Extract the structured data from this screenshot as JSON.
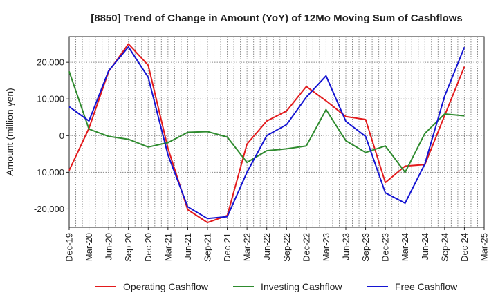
{
  "chart_data": {
    "type": "line",
    "title": "[8850]  Trend of Change in Amount (YoY) of 12Mo Moving Sum of Cashflows",
    "xlabel": "",
    "ylabel": "Amount (million yen)",
    "ylim": [
      -25000,
      27000
    ],
    "yticks": [
      -20000,
      -10000,
      0,
      10000,
      20000
    ],
    "ytick_labels": [
      "-20,000",
      "-10,000",
      "0",
      "10,000",
      "20,000"
    ],
    "categories": [
      "Dec-19",
      "Mar-20",
      "Jun-20",
      "Sep-20",
      "Dec-20",
      "Mar-21",
      "Jun-21",
      "Sep-21",
      "Dec-21",
      "Mar-22",
      "Jun-22",
      "Sep-22",
      "Dec-22",
      "Mar-23",
      "Jun-23",
      "Sep-23",
      "Dec-23",
      "Mar-24",
      "Jun-24",
      "Sep-24",
      "Dec-24",
      "Mar-25"
    ],
    "grid": true,
    "legend_position": "bottom",
    "series": [
      {
        "name": "Operating Cashflow",
        "color": "#e31a1c",
        "values": [
          -9500,
          2000,
          17500,
          25000,
          19200,
          -3500,
          -20200,
          -23700,
          -21800,
          -2300,
          4000,
          6700,
          13400,
          9500,
          5200,
          4400,
          -12800,
          -8300,
          -7900,
          5500,
          18800,
          null
        ]
      },
      {
        "name": "Investing Cashflow",
        "color": "#2e8b2e",
        "values": [
          17500,
          1800,
          -200,
          -1000,
          -3100,
          -1900,
          900,
          1100,
          -400,
          -7300,
          -4100,
          -3600,
          -2800,
          7100,
          -1400,
          -4600,
          -2800,
          -10000,
          600,
          5900,
          5400,
          null
        ]
      },
      {
        "name": "Free Cashflow",
        "color": "#1414d2",
        "values": [
          7900,
          4000,
          17700,
          24200,
          15900,
          -5300,
          -19400,
          -22600,
          -22100,
          -10000,
          0,
          3000,
          10500,
          16300,
          3900,
          -200,
          -15600,
          -18400,
          -7700,
          10800,
          24100,
          null
        ]
      }
    ]
  }
}
